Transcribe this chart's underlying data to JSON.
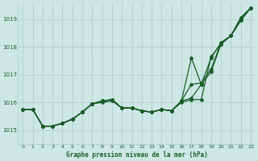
{
  "title": "Graphe pression niveau de la mer (hPa)",
  "background_color": "#cde8e4",
  "grid_color": "#aaccc8",
  "line_color": "#1a5c2a",
  "text_color": "#1a5c2a",
  "xlim": [
    -0.5,
    23.5
  ],
  "ylim": [
    1014.5,
    1019.6
  ],
  "yticks": [
    1015,
    1016,
    1017,
    1018,
    1019
  ],
  "xticks": [
    0,
    1,
    2,
    3,
    4,
    5,
    6,
    7,
    8,
    9,
    10,
    11,
    12,
    13,
    14,
    15,
    16,
    17,
    18,
    19,
    20,
    21,
    22,
    23
  ],
  "lines": [
    [
      1015.75,
      1015.75,
      1015.15,
      1015.15,
      1015.25,
      1015.4,
      1015.65,
      1015.95,
      1016.0,
      1016.05,
      1015.8,
      1015.8,
      1015.7,
      1015.65,
      1015.75,
      1015.7,
      1016.0,
      1016.1,
      1016.1,
      1017.65,
      1018.1,
      1018.4,
      1018.95,
      1019.4
    ],
    [
      1015.75,
      1015.75,
      1015.15,
      1015.15,
      1015.25,
      1015.4,
      1015.65,
      1015.95,
      1016.05,
      1016.1,
      1015.8,
      1015.8,
      1015.7,
      1015.65,
      1015.75,
      1015.7,
      1016.05,
      1017.6,
      1016.65,
      1017.6,
      1018.15,
      1018.4,
      1019.05,
      1019.4
    ],
    [
      1015.75,
      1015.75,
      1015.15,
      1015.15,
      1015.25,
      1015.4,
      1015.65,
      1015.95,
      1016.05,
      1016.1,
      1015.8,
      1015.8,
      1015.7,
      1015.65,
      1015.75,
      1015.7,
      1016.05,
      1016.65,
      1016.7,
      1017.2,
      1018.15,
      1018.4,
      1019.05,
      1019.4
    ],
    [
      1015.75,
      1015.75,
      1015.15,
      1015.15,
      1015.25,
      1015.4,
      1015.65,
      1015.95,
      1016.05,
      1016.1,
      1015.8,
      1015.8,
      1015.7,
      1015.65,
      1015.75,
      1015.7,
      1016.05,
      1016.15,
      1016.65,
      1017.1,
      1018.1,
      1018.4,
      1018.95,
      1019.4
    ]
  ],
  "marker": "D",
  "markersize": 2.0,
  "linewidth": 0.9
}
